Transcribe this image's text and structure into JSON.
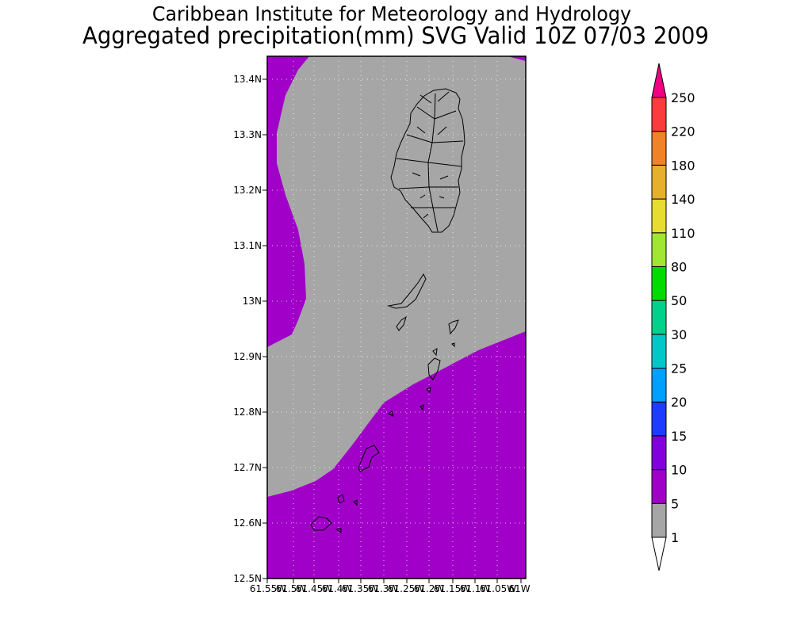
{
  "header": {
    "line1": "Caribbean Institute for Meteorology and Hydrology",
    "line2": "Aggregated precipitation(mm) SVG Valid 10Z 07/03 2009"
  },
  "map": {
    "region": "Saint Vincent and the Grenadines",
    "lat_range": [
      12.5,
      13.44
    ],
    "lon_range": [
      -61.55,
      -61.0
    ],
    "y_tick_labels": [
      "12.5N",
      "12.6N",
      "12.7N",
      "12.8N",
      "12.9N",
      "13N",
      "13.1N",
      "13.2N",
      "13.3N",
      "13.4N"
    ],
    "x_tick_labels": [
      "61.55W",
      "61.5W",
      "61.45W",
      "61.4W",
      "61.35W",
      "61.3W",
      "61.25W",
      "61.2W",
      "61.15W",
      "61.1W",
      "61.05W",
      "61W"
    ],
    "fill_background_class": "5-10",
    "fill_overlay_class": "1-5",
    "grid": true
  },
  "colorbar": {
    "levels": [
      "1",
      "5",
      "10",
      "15",
      "20",
      "25",
      "30",
      "50",
      "80",
      "110",
      "140",
      "180",
      "220",
      "250"
    ],
    "segment_colors": [
      "#ffffff",
      "#a6a6a6",
      "#a000c8",
      "#8200dc",
      "#1e3cff",
      "#00a0ff",
      "#00c8c8",
      "#00d28c",
      "#00dc00",
      "#a0e632",
      "#e6dc32",
      "#e6af2d",
      "#f08228",
      "#fa3c3c",
      "#f00082"
    ]
  }
}
